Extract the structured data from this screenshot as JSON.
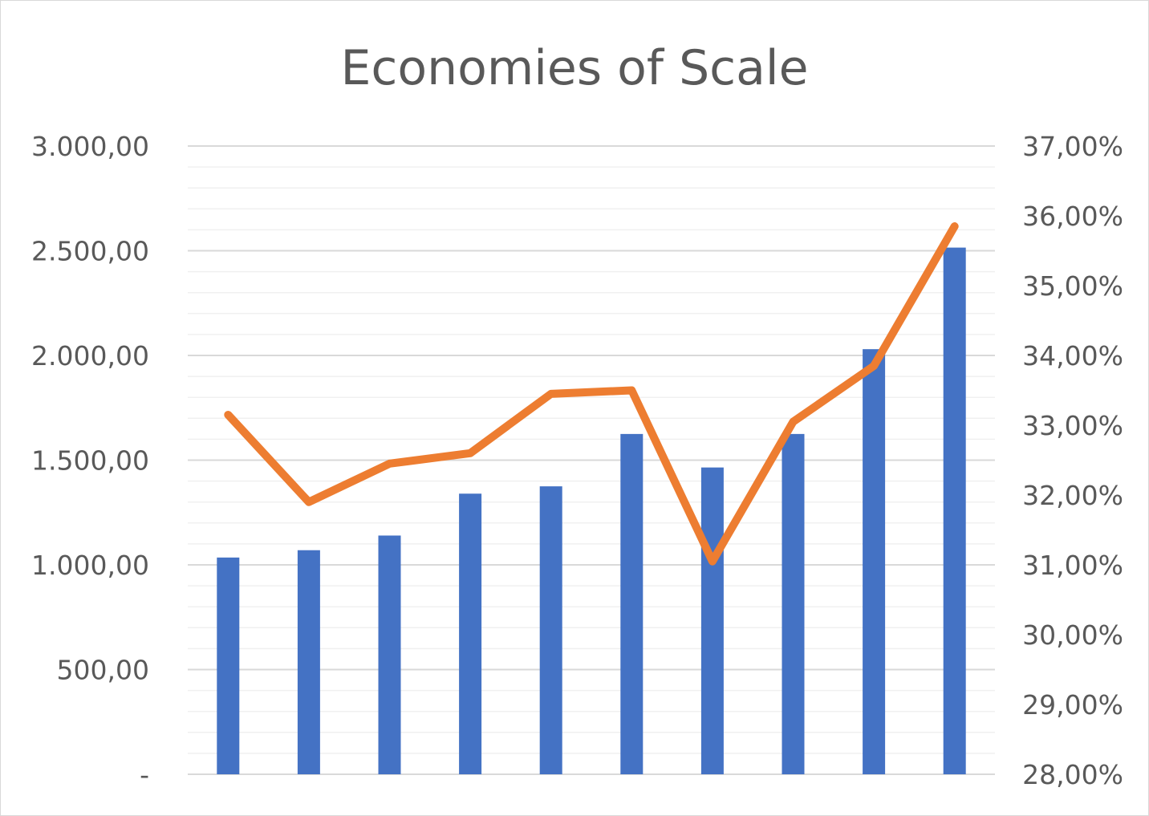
{
  "chart_data": {
    "type": "bar+line",
    "title": "Economies of Scale",
    "categories": [
      "",
      "",
      "",
      "",
      "",
      "",
      "",
      "",
      "",
      ""
    ],
    "series": [
      {
        "type": "bar",
        "axis": "left",
        "color": "#4472C4",
        "values": [
          1035,
          1070,
          1140,
          1340,
          1375,
          1625,
          1465,
          1625,
          2030,
          2515
        ]
      },
      {
        "type": "line",
        "axis": "right",
        "color": "#ED7D31",
        "values": [
          33.15,
          31.9,
          32.45,
          32.6,
          33.45,
          33.5,
          31.05,
          33.05,
          33.85,
          35.85
        ]
      }
    ],
    "left_axis": {
      "min": 0,
      "max": 3000,
      "ticks": [
        0,
        500,
        1000,
        1500,
        2000,
        2500,
        3000
      ],
      "tick_labels": [
        "-",
        "500,00",
        "1.000,00",
        "1.500,00",
        "2.000,00",
        "2.500,00",
        "3.000,00"
      ]
    },
    "right_axis": {
      "min": 28,
      "max": 37,
      "ticks": [
        28,
        29,
        30,
        31,
        32,
        33,
        34,
        35,
        36,
        37
      ],
      "tick_labels": [
        "28,00%",
        "29,00%",
        "30,00%",
        "31,00%",
        "32,00%",
        "33,00%",
        "34,00%",
        "35,00%",
        "36,00%",
        "37,00%"
      ]
    },
    "grid": true,
    "legend": "none"
  }
}
